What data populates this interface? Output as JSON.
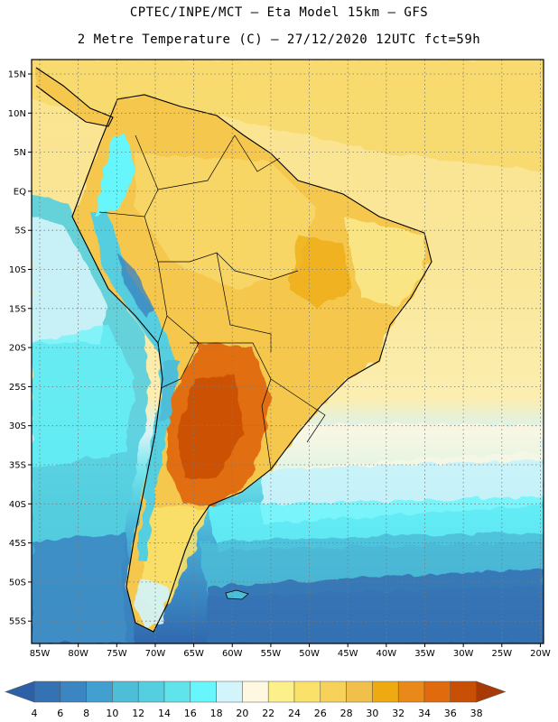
{
  "header": {
    "line1": "CPTEC/INPE/MCT –  Eta Model 15km – GFS",
    "line2": "2 Metre Temperature (C) – 27/12/2020 12UTC fct=59h"
  },
  "axes": {
    "lat_labels": [
      "15N",
      "10N",
      "5N",
      "EQ",
      "5S",
      "10S",
      "15S",
      "20S",
      "25S",
      "30S",
      "35S",
      "40S",
      "45S",
      "50S",
      "55S"
    ],
    "lon_labels": [
      "85W",
      "80W",
      "75W",
      "70W",
      "65W",
      "60W",
      "55W",
      "50W",
      "45W",
      "40W",
      "35W",
      "30W",
      "25W",
      "20W"
    ]
  },
  "colorbar": {
    "levels": [
      "4",
      "6",
      "8",
      "10",
      "12",
      "14",
      "16",
      "18",
      "20",
      "22",
      "24",
      "26",
      "28",
      "30",
      "32",
      "34",
      "36",
      "38"
    ],
    "colors": [
      "#3472b4",
      "#3a85c2",
      "#41a0cf",
      "#4dbdd8",
      "#55cfe0",
      "#5ee4ea",
      "#66f6fb",
      "#d2f5fb",
      "#fff8e0",
      "#fbf08a",
      "#fae16a",
      "#f6d25a",
      "#f0c04a",
      "#eeaa10",
      "#e9891a",
      "#e06a0c",
      "#c94e06",
      "#b3410a"
    ],
    "under_color": "#2e60a8",
    "over_color": "#a83a08"
  }
}
